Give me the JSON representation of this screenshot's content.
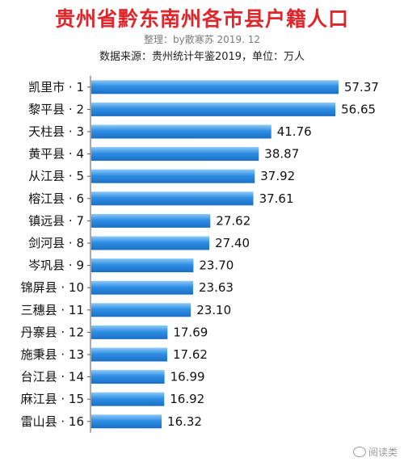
{
  "chart_data": {
    "type": "bar",
    "orientation": "horizontal",
    "title": "贵州省黔东南州各市县户籍人口",
    "subtitle": "整理：by散寒苏 2019. 12",
    "source": "数据来源：贵州统计年鉴2019，单位：万人",
    "categories": [
      "凯里市 · 1",
      "黎平县 · 2",
      "天柱县 · 3",
      "黄平县 · 4",
      "从江县 · 5",
      "榕江县 · 6",
      "镇远县 · 7",
      "剑河县 · 8",
      "岑巩县 · 9",
      "锦屏县 · 10",
      "三穗县 · 11",
      "丹寨县 · 12",
      "施秉县 · 13",
      "台江县 · 14",
      "麻江县 · 15",
      "雷山县 · 16"
    ],
    "values": [
      57.37,
      56.65,
      41.76,
      38.87,
      37.92,
      37.61,
      27.62,
      27.4,
      23.7,
      23.63,
      23.1,
      17.69,
      17.62,
      16.99,
      16.92,
      16.32
    ],
    "value_labels": [
      "57.37",
      "56.65",
      "41.76",
      "38.87",
      "37.92",
      "37.61",
      "27.62",
      "27.40",
      "23.70",
      "23.63",
      "23.10",
      "17.69",
      "17.62",
      "16.99",
      "16.92",
      "16.32"
    ],
    "bar_color": "#2f8fe4",
    "bar_highlight": "#8ec9f7",
    "grid": false,
    "legend": "none"
  },
  "watermark": {
    "icon": "wechat-icon",
    "text": "阅读类"
  }
}
